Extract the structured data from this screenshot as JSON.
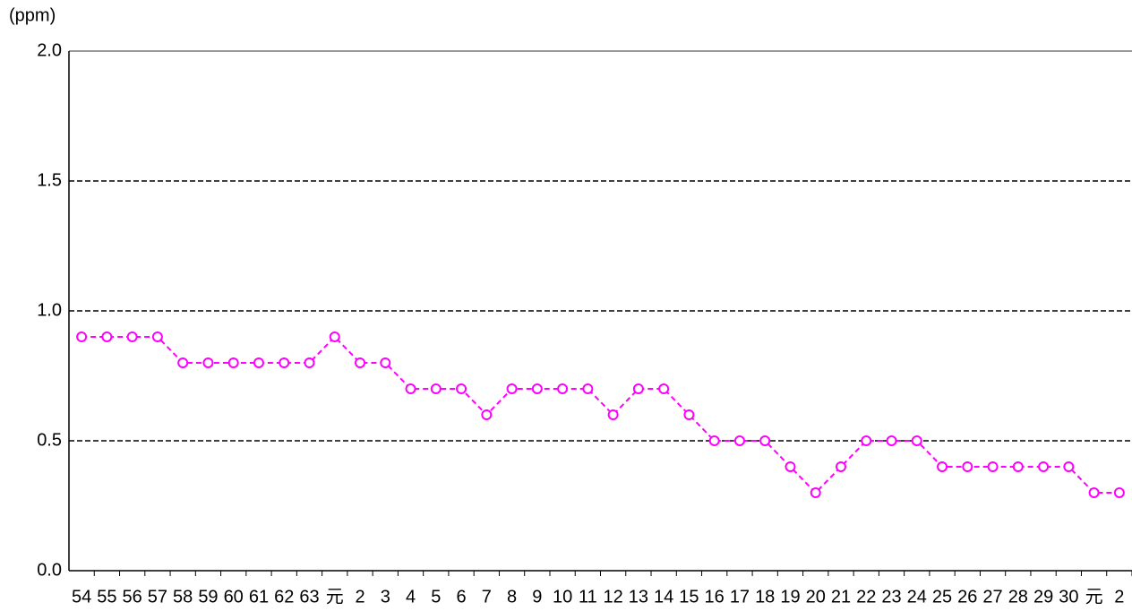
{
  "chart_data": {
    "type": "line",
    "y_label": "(ppm)",
    "categories": [
      "54",
      "55",
      "56",
      "57",
      "58",
      "59",
      "60",
      "61",
      "62",
      "63",
      "元",
      "2",
      "3",
      "4",
      "5",
      "6",
      "7",
      "8",
      "9",
      "10",
      "11",
      "12",
      "13",
      "14",
      "15",
      "16",
      "17",
      "18",
      "19",
      "20",
      "21",
      "22",
      "23",
      "24",
      "25",
      "26",
      "27",
      "28",
      "29",
      "30",
      "元",
      "2"
    ],
    "series": [
      {
        "color": "#ff00ff",
        "values": [
          0.9,
          0.9,
          0.9,
          0.9,
          0.8,
          0.8,
          0.8,
          0.8,
          0.8,
          0.8,
          0.9,
          0.8,
          0.8,
          0.7,
          0.7,
          0.7,
          0.6,
          0.7,
          0.7,
          0.7,
          0.7,
          0.6,
          0.7,
          0.7,
          0.6,
          0.5,
          0.5,
          0.5,
          0.4,
          0.3,
          0.4,
          0.5,
          0.5,
          0.5,
          0.4,
          0.4,
          0.4,
          0.4,
          0.4,
          0.4,
          0.3,
          0.3
        ]
      }
    ],
    "ylim": [
      0,
      2
    ],
    "yticks": [
      {
        "value": 0,
        "label": "0.0"
      },
      {
        "value": 0.5,
        "label": "0.5"
      },
      {
        "value": 1,
        "label": "1.0"
      },
      {
        "value": 1.5,
        "label": "1.5"
      },
      {
        "value": 2,
        "label": "2.0"
      }
    ],
    "grid": true
  }
}
